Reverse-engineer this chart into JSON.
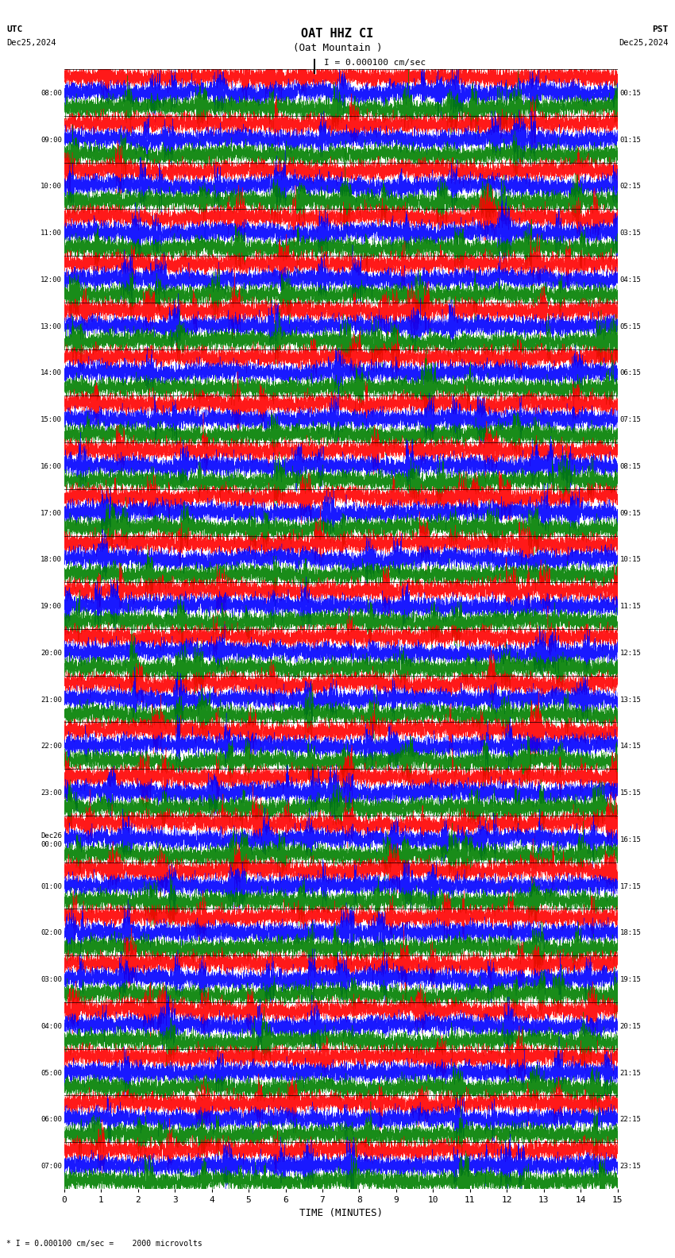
{
  "title_line1": "OAT HHZ CI",
  "title_line2": "(Oat Mountain )",
  "scale_label": "I = 0.000100 cm/sec",
  "bottom_label": "* I = 0.000100 cm/sec =    2000 microvolts",
  "utc_label": "UTC",
  "utc_date": "Dec25,2024",
  "pst_label": "PST",
  "pst_date": "Dec25,2024",
  "xlabel": "TIME (MINUTES)",
  "xlim": [
    0,
    15
  ],
  "xticks": [
    0,
    1,
    2,
    3,
    4,
    5,
    6,
    7,
    8,
    9,
    10,
    11,
    12,
    13,
    14,
    15
  ],
  "left_times": [
    "08:00",
    "09:00",
    "10:00",
    "11:00",
    "12:00",
    "13:00",
    "14:00",
    "15:00",
    "16:00",
    "17:00",
    "18:00",
    "19:00",
    "20:00",
    "21:00",
    "22:00",
    "23:00",
    "Dec26\n00:00",
    "01:00",
    "02:00",
    "03:00",
    "04:00",
    "05:00",
    "06:00",
    "07:00"
  ],
  "right_times": [
    "00:15",
    "01:15",
    "02:15",
    "03:15",
    "04:15",
    "05:15",
    "06:15",
    "07:15",
    "08:15",
    "09:15",
    "10:15",
    "11:15",
    "12:15",
    "13:15",
    "14:15",
    "15:15",
    "16:15",
    "17:15",
    "18:15",
    "19:15",
    "20:15",
    "21:15",
    "22:15",
    "23:15"
  ],
  "n_traces": 24,
  "sub_traces": 3,
  "trace_colors": [
    "red",
    "blue",
    "green",
    "black"
  ],
  "bg_color": "white",
  "fig_width": 8.5,
  "fig_height": 15.84,
  "dpi": 100,
  "samples_per_subtrace": 9000
}
